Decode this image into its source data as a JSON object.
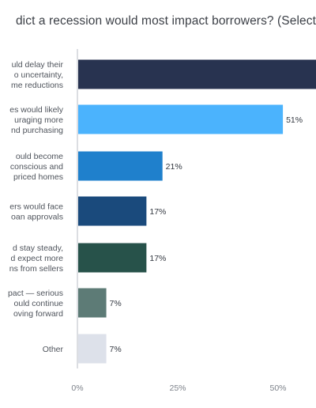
{
  "chart_data": {
    "type": "bar",
    "orientation": "horizontal",
    "title": "dict a recession would most impact borrowers? (Select",
    "categories": [
      [
        "uld delay their",
        "o uncertainty,",
        "me reductions"
      ],
      [
        "es would likely",
        "uraging more",
        "nd purchasing"
      ],
      [
        "ould become",
        "conscious and",
        "priced homes"
      ],
      [
        "ers would face",
        "oan approvals"
      ],
      [
        "d stay steady,",
        "d expect more",
        "ns from sellers"
      ],
      [
        "pact — serious",
        "ould continue",
        "oving forward"
      ],
      [
        "Other"
      ]
    ],
    "values": [
      60,
      51,
      21,
      17,
      17,
      7,
      7
    ],
    "value_labels": [
      "",
      "51%",
      "21%",
      "17%",
      "17%",
      "7%",
      "7%"
    ],
    "colors": [
      "#283350",
      "#4bb3fd",
      "#1f80cc",
      "#1a4a7c",
      "#27524a",
      "#5d7b76",
      "#dde1ea"
    ],
    "xlim": [
      0,
      60
    ],
    "xticks": [
      0,
      25,
      50
    ],
    "xtick_labels": [
      "0%",
      "25%",
      "50%"
    ],
    "grid": false
  }
}
